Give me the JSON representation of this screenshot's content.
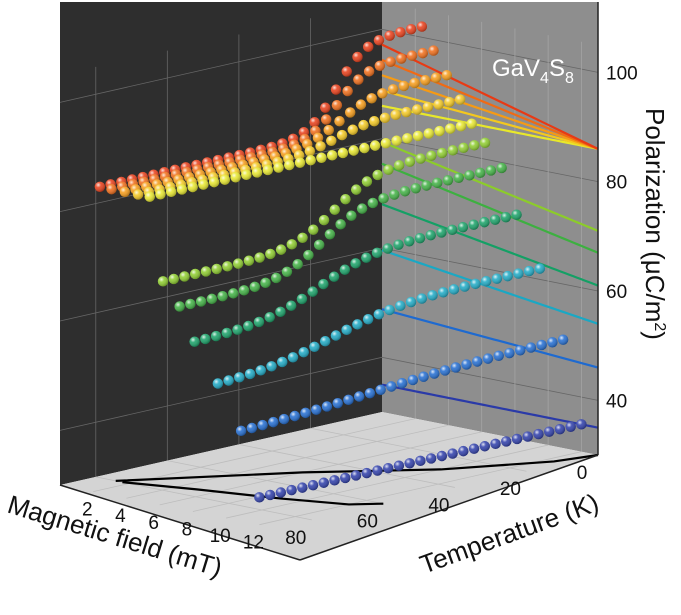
{
  "chart_data": {
    "type": "scatter",
    "subtype": "3d-scatter-with-projections",
    "annotation": {
      "base": "GaV",
      "sub1": "4",
      "mid": "S",
      "sub2": "8"
    },
    "axes": {
      "magnetic_field": {
        "label": "Magnetic field (mT)",
        "ticks": [
          "0",
          "20",
          "40",
          "60",
          "80"
        ],
        "range": [
          0,
          90
        ]
      },
      "temperature": {
        "label": "Temperature (K)",
        "ticks": [
          "2",
          "4",
          "6",
          "8",
          "10",
          "12"
        ],
        "range": [
          0,
          13
        ]
      },
      "polarization": {
        "label_prefix": "Polarization (",
        "label_unit": "μC/m",
        "label_sup": "2",
        "label_suffix": ")",
        "ticks": [
          "40",
          "60",
          "80",
          "100"
        ],
        "range": [
          30,
          105
        ]
      }
    },
    "grid": true,
    "series": [
      {
        "temperature": 12.0,
        "color": "#2a3aa8",
        "plateau": 35,
        "drop": 0,
        "center": 50,
        "width": 30
      },
      {
        "temperature": 10.9,
        "color": "#1e6ad0",
        "plateau": 50,
        "drop": 4,
        "center": 55,
        "width": 18
      },
      {
        "temperature": 9.5,
        "color": "#1aa8c4",
        "plateau": 62,
        "drop": 8,
        "center": 58,
        "width": 10
      },
      {
        "temperature": 8.1,
        "color": "#14a065",
        "plateau": 71,
        "drop": 10,
        "center": 55,
        "width": 8
      },
      {
        "temperature": 7.2,
        "color": "#3db040",
        "plateau": 79,
        "drop": 12,
        "center": 50,
        "width": 6
      },
      {
        "temperature": 6.2,
        "color": "#8ccc2a",
        "plateau": 83,
        "drop": 12,
        "center": 42,
        "width": 6
      },
      {
        "temperature": 5.4,
        "color": "#e8e82a",
        "plateau": 86,
        "drop": 0,
        "center": 40,
        "width": 6
      },
      {
        "temperature": 4.7,
        "color": "#f4c81e",
        "plateau": 90,
        "drop": 4,
        "center": 35,
        "width": 5
      },
      {
        "temperature": 3.9,
        "color": "#f69a14",
        "plateau": 94,
        "drop": 8,
        "center": 30,
        "width": 5
      },
      {
        "temperature": 3.1,
        "color": "#f06a14",
        "plateau": 98,
        "drop": 12,
        "center": 27,
        "width": 4
      },
      {
        "temperature": 2.4,
        "color": "#e83a14",
        "plateau": 102,
        "drop": 16,
        "center": 24,
        "width": 4
      }
    ],
    "floor_projection": {
      "color": "#000000",
      "curves": [
        [
          [
            80,
            1.2
          ],
          [
            50,
            6.0
          ],
          [
            30,
            10.0
          ],
          [
            10,
            12.5
          ],
          [
            0,
            13.0
          ]
        ],
        [
          [
            80,
            1.6
          ],
          [
            75,
            5.0
          ],
          [
            70,
            9.0
          ],
          [
            65,
            12.0
          ],
          [
            60,
            13.0
          ]
        ]
      ]
    }
  }
}
